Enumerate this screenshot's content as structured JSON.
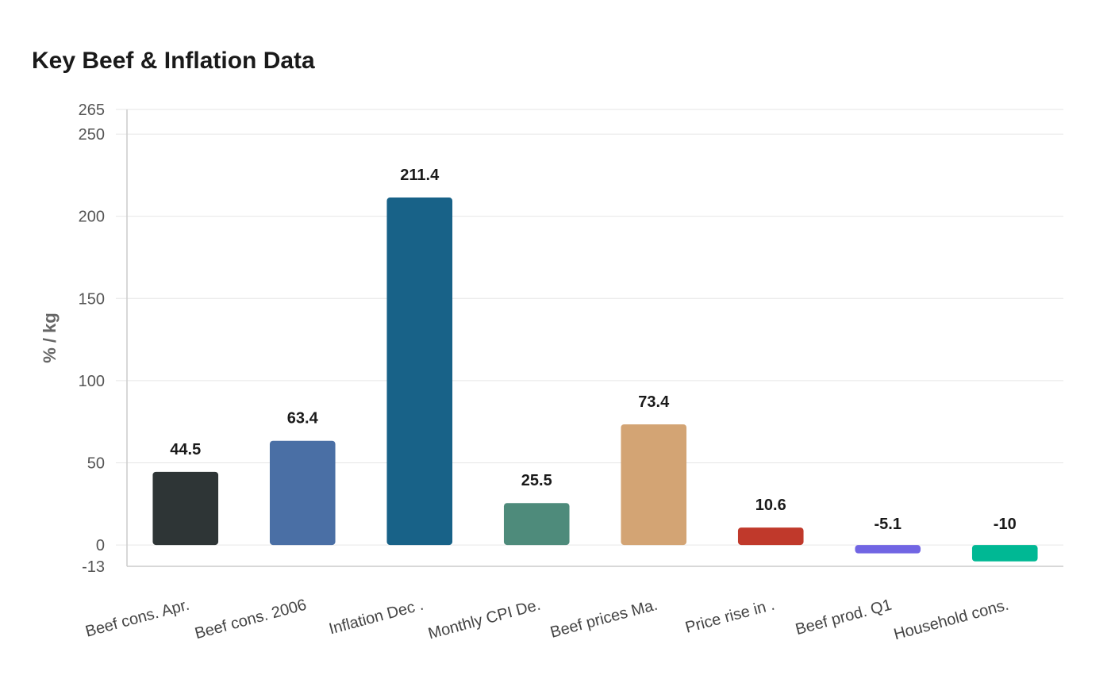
{
  "chart_data": {
    "type": "bar",
    "title": "Key Beef & Inflation Data",
    "xlabel": "",
    "ylabel": "% / kg",
    "ylim": [
      -13,
      265
    ],
    "yticks": [
      -13,
      0,
      50,
      100,
      150,
      200,
      250,
      265
    ],
    "grid": true,
    "categories": [
      "Beef cons. Apr.",
      "Beef cons. 2006",
      "Inflation Dec .",
      "Monthly CPI De.",
      "Beef prices Ma.",
      "Price rise in .",
      "Beef prod. Q1",
      "Household cons."
    ],
    "values": [
      44.5,
      63.4,
      211.4,
      25.5,
      73.4,
      10.6,
      -5.1,
      -10
    ],
    "value_labels": [
      "44.5",
      "63.4",
      "211.4",
      "25.5",
      "73.4",
      "10.6",
      "-5.1",
      "-10"
    ],
    "colors": [
      "#2e3536",
      "#4a6fa5",
      "#186288",
      "#4e8b7b",
      "#d3a474",
      "#c0392b",
      "#7165e3",
      "#00b894"
    ]
  }
}
